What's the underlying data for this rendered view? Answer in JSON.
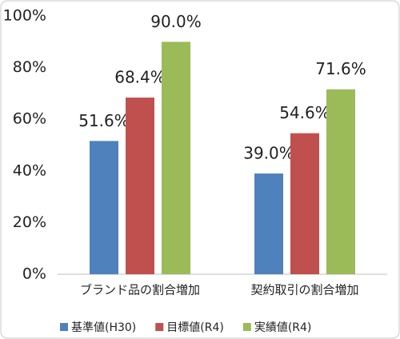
{
  "chart_data": {
    "type": "bar",
    "categories": [
      "ブランド品の割合増加",
      "契約取引の割合増加"
    ],
    "series": [
      {
        "name": "基準値(H30)",
        "color": "#4f81bd",
        "values": [
          51.6,
          39.0
        ],
        "value_labels": [
          "51.6%",
          "39.0%"
        ]
      },
      {
        "name": "目標値(R4)",
        "color": "#c0504d",
        "values": [
          68.4,
          54.6
        ],
        "value_labels": [
          "68.4%",
          "54.6%"
        ]
      },
      {
        "name": "実績値(R4)",
        "color": "#9bbb59",
        "values": [
          90.0,
          71.6
        ],
        "value_labels": [
          "90.0%",
          "71.6%"
        ]
      }
    ],
    "ylim": [
      0,
      100
    ],
    "yticks": [
      {
        "value": 0,
        "label": "0%"
      },
      {
        "value": 20,
        "label": "20%"
      },
      {
        "value": 40,
        "label": "40%"
      },
      {
        "value": 60,
        "label": "60%"
      },
      {
        "value": 80,
        "label": "80%"
      },
      {
        "value": 100,
        "label": "100%"
      }
    ],
    "legend": "bottom"
  }
}
